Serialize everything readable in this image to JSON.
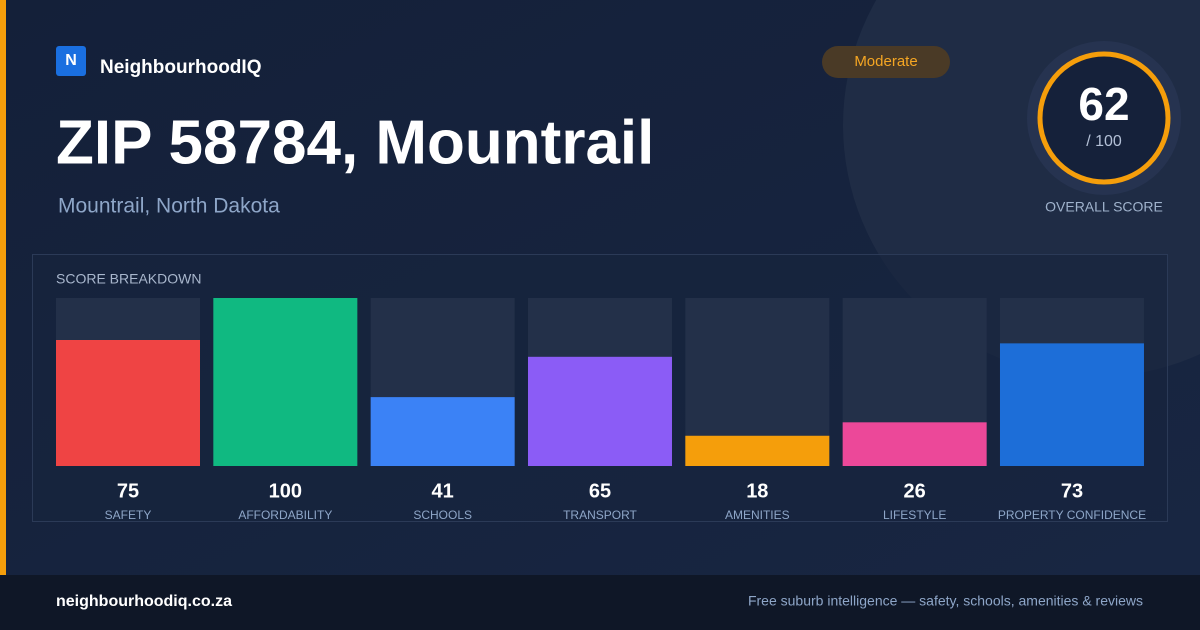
{
  "brand": {
    "logo": "N",
    "name": "NeighbourhoodIQ"
  },
  "badge": "Moderate",
  "title": "ZIP 58784, Mountrail",
  "subtitle": "Mountrail, North Dakota",
  "score": {
    "value": 62,
    "max_label": "/ 100",
    "label": "OVERALL SCORE"
  },
  "chart_data": {
    "type": "bar",
    "title": "SCORE BREAKDOWN",
    "categories": [
      "SAFETY",
      "AFFORDABILITY",
      "SCHOOLS",
      "TRANSPORT",
      "AMENITIES",
      "LIFESTYLE",
      "PROPERTY CONFIDENCE"
    ],
    "values": [
      75,
      100,
      41,
      65,
      18,
      26,
      73
    ],
    "colors": [
      "#ef4444",
      "#10b981",
      "#3b82f6",
      "#8b5cf6",
      "#f59e0b",
      "#ec4899",
      "#1d6ed8"
    ],
    "ylim": [
      0,
      100
    ]
  },
  "footer": {
    "site": "neighbourhoodiq.co.za",
    "tagline": "Free suburb intelligence — safety, schools, amenities & reviews"
  }
}
